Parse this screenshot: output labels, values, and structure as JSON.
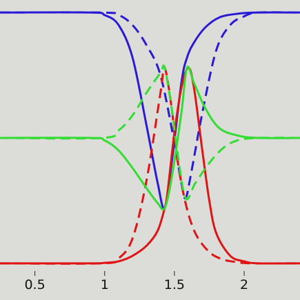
{
  "chart_data": {
    "type": "line",
    "title": "",
    "xlabel": "",
    "ylabel": "",
    "xlim": [
      0.25,
      2.4
    ],
    "ylim": [
      -0.05,
      1.05
    ],
    "x_ticks": [
      {
        "value": 0.5,
        "label": "0.5"
      },
      {
        "value": 1,
        "label": "1"
      },
      {
        "value": 1.5,
        "label": "1.5"
      },
      {
        "value": 2,
        "label": "2"
      }
    ],
    "grid": false,
    "legend": "none",
    "series": [
      {
        "color": "#2a1ad6",
        "style": "solid",
        "x": [
          0.25,
          0.9,
          1.0,
          1.1,
          1.2,
          1.3,
          1.38,
          1.43,
          1.48,
          1.55,
          1.59,
          1.64,
          1.72,
          1.82,
          1.95,
          2.1,
          2.4
        ],
        "y": [
          1.0,
          1.0,
          0.99,
          0.95,
          0.82,
          0.55,
          0.32,
          0.22,
          0.4,
          0.72,
          0.82,
          0.88,
          0.94,
          0.98,
          0.995,
          1.0,
          1.0
        ]
      },
      {
        "color": "#2a1ad6",
        "style": "dashed",
        "x": [
          0.25,
          0.98,
          1.1,
          1.2,
          1.3,
          1.4,
          1.5,
          1.55,
          1.58,
          1.62,
          1.7,
          1.8,
          1.9,
          2.0,
          2.1,
          2.4
        ],
        "y": [
          1.0,
          1.0,
          0.99,
          0.95,
          0.87,
          0.75,
          0.48,
          0.32,
          0.26,
          0.36,
          0.6,
          0.85,
          0.95,
          0.985,
          1.0,
          1.0
        ]
      },
      {
        "color": "#e01414",
        "style": "solid",
        "x": [
          0.25,
          0.9,
          1.0,
          1.1,
          1.2,
          1.3,
          1.38,
          1.43,
          1.45,
          1.5,
          1.55,
          1.6,
          1.64,
          1.7,
          1.75,
          1.8,
          1.9,
          2.0,
          2.1,
          2.4
        ],
        "y": [
          0.0,
          0.0,
          0.002,
          0.008,
          0.03,
          0.07,
          0.13,
          0.22,
          0.28,
          0.52,
          0.7,
          0.78,
          0.7,
          0.45,
          0.25,
          0.12,
          0.03,
          0.008,
          0.0,
          0.0
        ]
      },
      {
        "color": "#e01414",
        "style": "dashed",
        "x": [
          0.25,
          0.98,
          1.1,
          1.2,
          1.3,
          1.4,
          1.43,
          1.48,
          1.52,
          1.58,
          1.65,
          1.75,
          1.85,
          1.95,
          2.05,
          2.4
        ],
        "y": [
          0.0,
          0.0,
          0.02,
          0.1,
          0.33,
          0.68,
          0.78,
          0.62,
          0.42,
          0.24,
          0.12,
          0.045,
          0.015,
          0.005,
          0.0,
          0.0
        ]
      },
      {
        "color": "#33dd33",
        "style": "solid",
        "x": [
          0.25,
          0.9,
          1.0,
          1.1,
          1.2,
          1.3,
          1.38,
          1.43,
          1.48,
          1.55,
          1.59,
          1.64,
          1.72,
          1.82,
          1.95,
          2.1,
          2.4
        ],
        "y": [
          0.5,
          0.5,
          0.49,
          0.45,
          0.38,
          0.3,
          0.24,
          0.22,
          0.34,
          0.6,
          0.78,
          0.72,
          0.62,
          0.54,
          0.51,
          0.5,
          0.5
        ]
      },
      {
        "color": "#33dd33",
        "style": "dashed",
        "x": [
          0.25,
          0.98,
          1.1,
          1.2,
          1.3,
          1.4,
          1.43,
          1.48,
          1.52,
          1.58,
          1.65,
          1.75,
          1.85,
          1.95,
          2.1,
          2.4
        ],
        "y": [
          0.5,
          0.5,
          0.53,
          0.59,
          0.68,
          0.76,
          0.78,
          0.62,
          0.45,
          0.26,
          0.32,
          0.4,
          0.46,
          0.49,
          0.5,
          0.5
        ]
      }
    ]
  }
}
